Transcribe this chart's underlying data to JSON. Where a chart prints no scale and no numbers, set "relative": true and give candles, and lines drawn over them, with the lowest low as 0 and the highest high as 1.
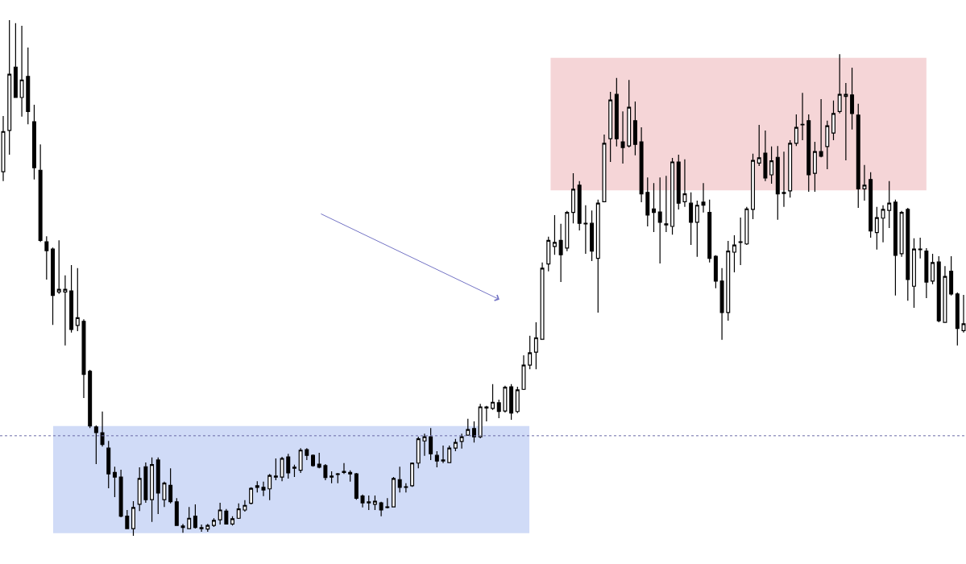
{
  "chart_data": {
    "type": "candlestick",
    "relative": true,
    "categories": [
      null,
      null,
      null,
      null,
      null,
      null,
      null,
      null,
      null,
      null,
      null,
      null,
      null,
      null,
      null,
      null,
      null,
      null,
      null,
      null,
      null,
      null,
      null,
      null,
      null,
      null,
      null,
      null,
      null,
      null,
      null,
      null,
      null,
      null,
      null,
      null,
      null,
      null,
      null,
      null,
      null,
      null,
      null,
      null,
      null,
      null,
      null,
      null,
      null,
      null,
      null,
      null,
      null,
      null,
      null,
      null,
      null,
      null,
      null,
      null,
      null,
      null,
      null,
      null,
      null,
      null,
      null,
      null,
      null,
      null,
      null,
      null,
      null,
      null,
      null,
      null,
      null,
      null,
      null,
      null,
      null,
      null,
      null,
      null,
      null,
      null,
      null,
      null,
      null,
      null,
      null,
      null,
      null,
      null,
      null,
      null,
      null,
      null,
      null,
      null,
      null,
      null,
      null,
      null,
      null,
      null,
      null,
      null,
      null,
      null,
      null,
      null,
      null,
      null,
      null,
      null,
      null,
      null,
      null,
      null,
      null,
      null,
      null,
      null,
      null,
      null,
      null,
      null,
      null,
      null,
      null,
      null,
      null,
      null,
      null,
      null,
      null,
      null,
      null,
      null,
      null,
      null,
      null,
      null,
      null,
      null,
      null,
      null,
      null,
      null,
      null,
      null,
      null,
      null,
      null,
      null
    ],
    "ohlc": [
      [
        0.706,
        0.814,
        0.688,
        0.784
      ],
      [
        0.786,
        1,
        0.739,
        0.895
      ],
      [
        0.909,
        0.994,
        0.85,
        0.85
      ],
      [
        0.85,
        0.989,
        0.813,
        0.884
      ],
      [
        0.891,
        0.947,
        0.798,
        0.823
      ],
      [
        0.803,
        0.836,
        0.691,
        0.714
      ],
      [
        0.709,
        0.759,
        0.57,
        0.573
      ],
      [
        0.57,
        0.581,
        0.497,
        0.553
      ],
      [
        0.556,
        0.559,
        0.409,
        0.466
      ],
      [
        0.473,
        0.573,
        0.469,
        0.478
      ],
      [
        0.473,
        0.505,
        0.369,
        0.478
      ],
      [
        0.475,
        0.525,
        0.394,
        0.4
      ],
      [
        0.408,
        0.519,
        0.397,
        0.423
      ],
      [
        0.416,
        0.42,
        0.267,
        0.313
      ],
      [
        0.319,
        0.322,
        0.209,
        0.213
      ],
      [
        0.211,
        0.214,
        0.139,
        0.2
      ],
      [
        0.2,
        0.241,
        0.173,
        0.177
      ],
      [
        0.17,
        0.184,
        0.092,
        0.12
      ],
      [
        0.123,
        0.134,
        0.075,
        0.114
      ],
      [
        0.114,
        0.128,
        0.036,
        0.038
      ],
      [
        0.038,
        0.05,
        0.013,
        0.014
      ],
      [
        0.014,
        0.067,
        0,
        0.055
      ],
      [
        0.061,
        0.133,
        0.048,
        0.111
      ],
      [
        0.134,
        0.142,
        0.064,
        0.07
      ],
      [
        0.07,
        0.152,
        0.027,
        0.138
      ],
      [
        0.147,
        0.152,
        0.042,
        0.083
      ],
      [
        0.07,
        0.105,
        0.056,
        0.102
      ],
      [
        0.098,
        0.131,
        0.063,
        0.066
      ],
      [
        0.066,
        0.073,
        0.019,
        0.02
      ],
      [
        0.019,
        0.023,
        0.006,
        0.016
      ],
      [
        0.014,
        0.056,
        0.013,
        0.034
      ],
      [
        0.038,
        0.061,
        0.014,
        0.016
      ],
      [
        0.014,
        0.022,
        0.008,
        0.016
      ],
      [
        0.013,
        0.023,
        0.008,
        0.02
      ],
      [
        0.02,
        0.034,
        0.017,
        0.03
      ],
      [
        0.031,
        0.064,
        0.022,
        0.05
      ],
      [
        0.048,
        0.052,
        0.022,
        0.023
      ],
      [
        0.023,
        0.038,
        0.02,
        0.033
      ],
      [
        0.034,
        0.063,
        0.033,
        0.052
      ],
      [
        0.05,
        0.069,
        0.047,
        0.059
      ],
      [
        0.063,
        0.094,
        0.061,
        0.092
      ],
      [
        0.094,
        0.106,
        0.084,
        0.097
      ],
      [
        0.094,
        0.105,
        0.077,
        0.089
      ],
      [
        0.091,
        0.12,
        0.069,
        0.117
      ],
      [
        0.114,
        0.15,
        0.108,
        0.116
      ],
      [
        0.114,
        0.153,
        0.106,
        0.15
      ],
      [
        0.153,
        0.159,
        0.111,
        0.122
      ],
      [
        0.131,
        0.138,
        0.114,
        0.133
      ],
      [
        0.127,
        0.17,
        0.122,
        0.166
      ],
      [
        0.167,
        0.17,
        0.147,
        0.156
      ],
      [
        0.156,
        0.158,
        0.134,
        0.136
      ],
      [
        0.139,
        0.161,
        0.131,
        0.133
      ],
      [
        0.136,
        0.139,
        0.108,
        0.113
      ],
      [
        0.114,
        0.125,
        0.102,
        0.116
      ],
      [
        0.119,
        0.122,
        0.102,
        0.12
      ],
      [
        0.123,
        0.141,
        0.12,
        0.125
      ],
      [
        0.123,
        0.127,
        0.105,
        0.12
      ],
      [
        0.12,
        0.122,
        0.07,
        0.073
      ],
      [
        0.077,
        0.08,
        0.055,
        0.064
      ],
      [
        0.064,
        0.078,
        0.05,
        0.066
      ],
      [
        0.061,
        0.078,
        0.05,
        0.067
      ],
      [
        0.064,
        0.066,
        0.038,
        0.05
      ],
      [
        0.055,
        0.073,
        0.053,
        0.056
      ],
      [
        0.056,
        0.114,
        0.055,
        0.111
      ],
      [
        0.109,
        0.134,
        0.084,
        0.094
      ],
      [
        0.094,
        0.102,
        0.084,
        0.095
      ],
      [
        0.097,
        0.142,
        0.095,
        0.141
      ],
      [
        0.141,
        0.192,
        0.131,
        0.188
      ],
      [
        0.184,
        0.198,
        0.155,
        0.192
      ],
      [
        0.192,
        0.209,
        0.147,
        0.159
      ],
      [
        0.156,
        0.164,
        0.133,
        0.145
      ],
      [
        0.145,
        0.175,
        0.141,
        0.147
      ],
      [
        0.142,
        0.175,
        0.141,
        0.17
      ],
      [
        0.17,
        0.188,
        0.164,
        0.181
      ],
      [
        0.183,
        0.198,
        0.169,
        0.192
      ],
      [
        0.195,
        0.227,
        0.194,
        0.206
      ],
      [
        0.208,
        0.222,
        0.181,
        0.192
      ],
      [
        0.192,
        0.256,
        0.189,
        0.25
      ],
      [
        0.248,
        0.252,
        0.222,
        0.25
      ],
      [
        0.247,
        0.294,
        0.244,
        0.259
      ],
      [
        0.258,
        0.264,
        0.228,
        0.241
      ],
      [
        0.242,
        0.291,
        0.239,
        0.288
      ],
      [
        0.289,
        0.294,
        0.225,
        0.238
      ],
      [
        0.241,
        0.289,
        0.238,
        0.283
      ],
      [
        0.284,
        0.35,
        0.283,
        0.331
      ],
      [
        0.331,
        0.388,
        0.323,
        0.355
      ],
      [
        0.356,
        0.414,
        0.323,
        0.384
      ],
      [
        0.381,
        0.53,
        0.38,
        0.519
      ],
      [
        0.527,
        0.58,
        0.513,
        0.573
      ],
      [
        0.561,
        0.622,
        0.545,
        0.569
      ],
      [
        0.573,
        0.605,
        0.492,
        0.545
      ],
      [
        0.558,
        0.63,
        0.552,
        0.627
      ],
      [
        0.627,
        0.703,
        0.606,
        0.672
      ],
      [
        0.68,
        0.688,
        0.592,
        0.606
      ],
      [
        0.606,
        0.641,
        0.547,
        0.605
      ],
      [
        0.606,
        0.631,
        0.533,
        0.552
      ],
      [
        0.538,
        0.652,
        0.433,
        0.645
      ],
      [
        0.648,
        0.778,
        0.647,
        0.761
      ],
      [
        0.77,
        0.861,
        0.725,
        0.845
      ],
      [
        0.856,
        0.888,
        0.755,
        0.77
      ],
      [
        0.764,
        0.823,
        0.722,
        0.753
      ],
      [
        0.756,
        0.884,
        0.753,
        0.831
      ],
      [
        0.805,
        0.842,
        0.738,
        0.759
      ],
      [
        0.764,
        0.792,
        0.647,
        0.663
      ],
      [
        0.666,
        0.695,
        0.6,
        0.622
      ],
      [
        0.634,
        0.684,
        0.589,
        0.627
      ],
      [
        0.628,
        0.695,
        0.528,
        0.608
      ],
      [
        0.605,
        0.698,
        0.589,
        0.603
      ],
      [
        0.6,
        0.733,
        0.584,
        0.725
      ],
      [
        0.725,
        0.739,
        0.633,
        0.645
      ],
      [
        0.648,
        0.73,
        0.638,
        0.663
      ],
      [
        0.645,
        0.666,
        0.564,
        0.608
      ],
      [
        0.608,
        0.65,
        0.541,
        0.641
      ],
      [
        0.647,
        0.684,
        0.627,
        0.641
      ],
      [
        0.627,
        0.652,
        0.53,
        0.538
      ],
      [
        0.542,
        0.544,
        0.48,
        0.494
      ],
      [
        0.494,
        0.519,
        0.38,
        0.433
      ],
      [
        0.433,
        0.572,
        0.417,
        0.552
      ],
      [
        0.55,
        0.583,
        0.511,
        0.564
      ],
      [
        0.569,
        0.617,
        0.525,
        0.57
      ],
      [
        0.566,
        0.638,
        0.564,
        0.634
      ],
      [
        0.633,
        0.741,
        0.614,
        0.728
      ],
      [
        0.723,
        0.797,
        0.717,
        0.733
      ],
      [
        0.742,
        0.786,
        0.688,
        0.694
      ],
      [
        0.7,
        0.755,
        0.683,
        0.727
      ],
      [
        0.734,
        0.756,
        0.613,
        0.663
      ],
      [
        0.664,
        0.745,
        0.638,
        0.666
      ],
      [
        0.669,
        0.767,
        0.656,
        0.761
      ],
      [
        0.761,
        0.817,
        0.756,
        0.792
      ],
      [
        0.797,
        0.859,
        0.767,
        0.798
      ],
      [
        0.805,
        0.817,
        0.667,
        0.7
      ],
      [
        0.703,
        0.764,
        0.667,
        0.745
      ],
      [
        0.745,
        0.847,
        0.734,
        0.736
      ],
      [
        0.755,
        0.805,
        0.711,
        0.795
      ],
      [
        0.781,
        0.844,
        0.767,
        0.819
      ],
      [
        0.823,
        0.934,
        0.819,
        0.856
      ],
      [
        0.852,
        0.878,
        0.728,
        0.856
      ],
      [
        0.855,
        0.908,
        0.788,
        0.819
      ],
      [
        0.816,
        0.838,
        0.636,
        0.673
      ],
      [
        0.673,
        0.719,
        0.65,
        0.68
      ],
      [
        0.691,
        0.705,
        0.578,
        0.591
      ],
      [
        0.588,
        0.638,
        0.555,
        0.617
      ],
      [
        0.616,
        0.641,
        0.569,
        0.633
      ],
      [
        0.631,
        0.688,
        0.597,
        0.645
      ],
      [
        0.647,
        0.652,
        0.466,
        0.544
      ],
      [
        0.547,
        0.63,
        0.541,
        0.627
      ],
      [
        0.633,
        0.636,
        0.456,
        0.497
      ],
      [
        0.484,
        0.577,
        0.442,
        0.556
      ],
      [
        0.555,
        0.578,
        0.538,
        0.556
      ],
      [
        0.552,
        0.558,
        0.461,
        0.492
      ],
      [
        0.494,
        0.547,
        0.488,
        0.53
      ],
      [
        0.531,
        0.542,
        0.414,
        0.417
      ],
      [
        0.414,
        0.523,
        0.413,
        0.503
      ],
      [
        0.513,
        0.542,
        0.466,
        0.469
      ],
      [
        0.469,
        0.472,
        0.369,
        0.402
      ],
      [
        0.398,
        0.467,
        0.394,
        0.411
      ]
    ],
    "bands": [
      {
        "axis": "y",
        "from": 0.005,
        "to": 0.213,
        "color": "#d0dbf7"
      },
      {
        "axis": "y",
        "from": 0.67,
        "to": 0.927,
        "color": "#f5d5d7"
      }
    ],
    "ref_lines": [
      {
        "axis": "y",
        "value": 0.194,
        "color": "#6a6aa8",
        "line_style": "dotted"
      }
    ]
  }
}
